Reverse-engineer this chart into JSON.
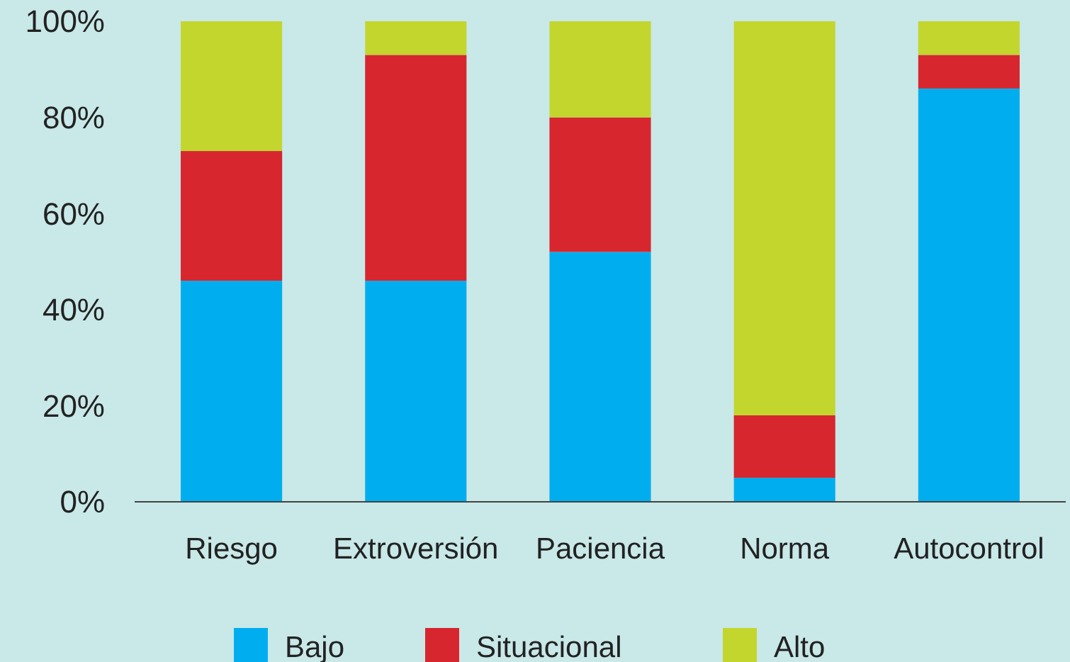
{
  "chart_data": {
    "type": "bar",
    "stacked": true,
    "categories": [
      "Riesgo",
      "Extroversión",
      "Paciencia",
      "Norma",
      "Autocontrol"
    ],
    "series": [
      {
        "name": "Bajo",
        "color": "#00aeef",
        "values": [
          46,
          46,
          52,
          5,
          86
        ]
      },
      {
        "name": "Situacional",
        "color": "#d7262e",
        "values": [
          27,
          47,
          28,
          13,
          7
        ]
      },
      {
        "name": "Alto",
        "color": "#c3d62e",
        "values": [
          27,
          7,
          20,
          82,
          7
        ]
      }
    ],
    "ylim": [
      0,
      100
    ],
    "yticks": [
      {
        "value": 0,
        "label": "0%"
      },
      {
        "value": 20,
        "label": "20%"
      },
      {
        "value": 40,
        "label": "40%"
      },
      {
        "value": 60,
        "label": "60%"
      },
      {
        "value": 80,
        "label": "80%"
      },
      {
        "value": 100,
        "label": "100%"
      }
    ],
    "grid": false,
    "legend": "bottom"
  }
}
